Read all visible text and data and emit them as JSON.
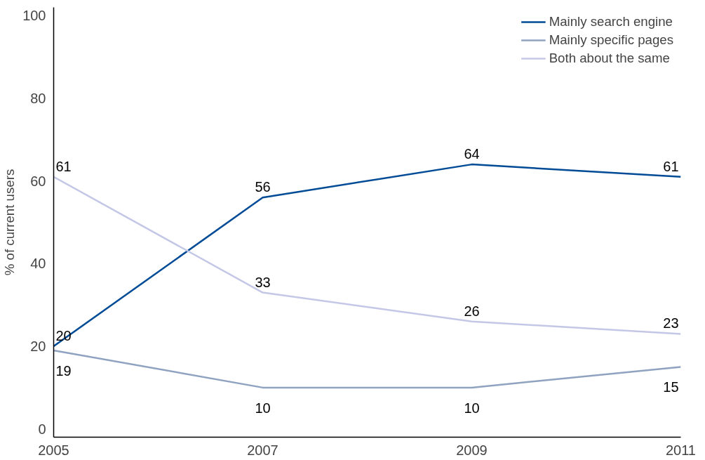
{
  "chart_data": {
    "type": "line",
    "ylabel": "% of current users",
    "x": [
      2005,
      2007,
      2009,
      2011
    ],
    "series": [
      {
        "name": "Mainly search engine",
        "color": "#004b96",
        "values": [
          20,
          56,
          64,
          61
        ]
      },
      {
        "name": "Mainly specific pages",
        "color": "#8fa3c0",
        "values": [
          19,
          10,
          10,
          15
        ]
      },
      {
        "name": "Both about the same",
        "color": "#c4c8e6",
        "values": [
          61,
          33,
          26,
          23
        ]
      }
    ],
    "xlim": [
      2005,
      2011
    ],
    "ylim": [
      -2,
      102
    ],
    "xticks": [
      2005,
      2007,
      2009,
      2011
    ],
    "yticks": [
      0,
      20,
      40,
      60,
      80,
      100
    ],
    "grid": false,
    "legend": "top right",
    "data_labels": true,
    "line_style": "solid",
    "marker": "none"
  }
}
